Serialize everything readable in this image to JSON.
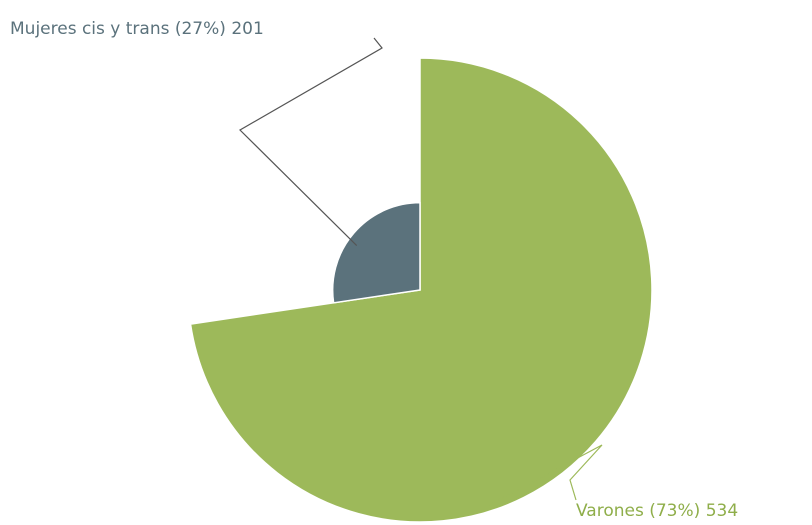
{
  "chart_data": {
    "type": "polar-pie",
    "categories": [
      "Varones",
      "Mujeres cis y trans"
    ],
    "values": [
      534,
      201
    ],
    "percents": [
      73,
      27
    ],
    "labels": [
      "Varones (73%) 534",
      "Mujeres cis y trans (27%) 201"
    ],
    "colors": [
      "#9db95a",
      "#5b727c"
    ],
    "label_colors": [
      "#8fae4a",
      "#5b727c"
    ]
  }
}
